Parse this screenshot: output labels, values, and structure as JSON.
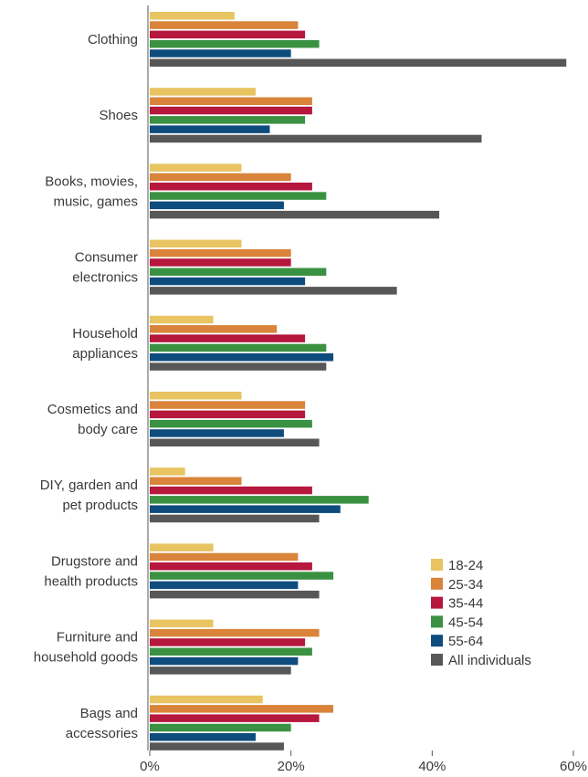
{
  "chart_data": {
    "type": "bar",
    "orientation": "horizontal",
    "categories": [
      "Clothing",
      "Shoes",
      "Books, movies, music, games",
      "Consumer electronics",
      "Household appliances",
      "Cosmetics and body care",
      "DIY, garden and pet products",
      "Drugstore and health products",
      "Furniture and household goods",
      "Bags and accessories"
    ],
    "category_lines": [
      [
        "Clothing"
      ],
      [
        "Shoes"
      ],
      [
        "Books, movies,",
        "music, games"
      ],
      [
        "Consumer",
        "electronics"
      ],
      [
        "Household",
        "appliances"
      ],
      [
        "Cosmetics and",
        "body care"
      ],
      [
        "DIY, garden and",
        "pet products"
      ],
      [
        "Drugstore and",
        "health products"
      ],
      [
        "Furniture and",
        "household goods"
      ],
      [
        "Bags and",
        "accessories"
      ]
    ],
    "series": [
      {
        "name": "18-24",
        "color": "#e8c462",
        "values": [
          12,
          15,
          13,
          13,
          9,
          13,
          5,
          9,
          9,
          16
        ]
      },
      {
        "name": "25-34",
        "color": "#d9843a",
        "values": [
          21,
          23,
          20,
          20,
          18,
          22,
          13,
          21,
          24,
          26
        ]
      },
      {
        "name": "35-44",
        "color": "#b5173d",
        "values": [
          22,
          23,
          23,
          20,
          22,
          22,
          23,
          23,
          22,
          24
        ]
      },
      {
        "name": "45-54",
        "color": "#3a9142",
        "values": [
          24,
          22,
          25,
          25,
          25,
          23,
          31,
          26,
          23,
          20
        ]
      },
      {
        "name": "55-64",
        "color": "#0f4c7e",
        "values": [
          20,
          17,
          19,
          22,
          26,
          19,
          27,
          21,
          21,
          15
        ]
      },
      {
        "name": "All individuals",
        "color": "#575757",
        "values": [
          59,
          47,
          41,
          35,
          25,
          24,
          24,
          24,
          20,
          19
        ]
      }
    ],
    "x_ticks": [
      "0%",
      "20%",
      "40%",
      "60%"
    ],
    "xlim": [
      0,
      60
    ],
    "legend_position": "right",
    "grid": false
  }
}
